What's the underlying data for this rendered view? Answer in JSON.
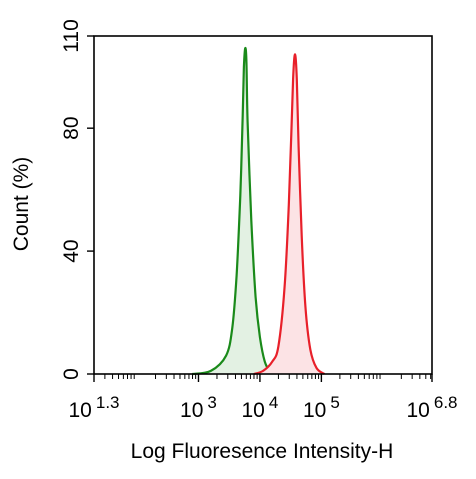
{
  "chart_data": {
    "type": "area",
    "xlabel": "Log Fluoresence Intensity-H",
    "ylabel": "Count  (%)",
    "xscale": "log",
    "xlim": [
      1.3,
      6.8
    ],
    "ylim": [
      0,
      110
    ],
    "x_ticks": [
      {
        "base": "10",
        "exp": "1.3",
        "v": 1.3
      },
      {
        "base": "10",
        "exp": "3",
        "v": 3
      },
      {
        "base": "10",
        "exp": "4",
        "v": 4
      },
      {
        "base": "10",
        "exp": "5",
        "v": 5
      },
      {
        "base": "10",
        "exp": "6.8",
        "v": 6.8
      }
    ],
    "y_ticks": [
      0,
      40,
      80,
      110
    ],
    "grid": false,
    "series": [
      {
        "color": "#1a8a1a",
        "fill": "#e3f1e3",
        "points": [
          [
            2.9,
            0
          ],
          [
            3.2,
            1
          ],
          [
            3.45,
            6
          ],
          [
            3.55,
            15
          ],
          [
            3.62,
            32
          ],
          [
            3.68,
            58
          ],
          [
            3.72,
            84
          ],
          [
            3.74,
            100
          ],
          [
            3.76,
            106
          ],
          [
            3.78,
            102
          ],
          [
            3.8,
            82
          ],
          [
            3.86,
            50
          ],
          [
            3.93,
            25
          ],
          [
            4.0,
            12
          ],
          [
            4.08,
            4
          ],
          [
            4.18,
            0
          ]
        ]
      },
      {
        "color": "#e8202a",
        "fill": "#fce3e5",
        "points": [
          [
            3.9,
            0
          ],
          [
            4.05,
            1
          ],
          [
            4.2,
            4
          ],
          [
            4.3,
            9
          ],
          [
            4.4,
            28
          ],
          [
            4.47,
            55
          ],
          [
            4.51,
            78
          ],
          [
            4.54,
            96
          ],
          [
            4.57,
            104
          ],
          [
            4.6,
            96
          ],
          [
            4.63,
            74
          ],
          [
            4.68,
            45
          ],
          [
            4.74,
            22
          ],
          [
            4.82,
            8
          ],
          [
            4.92,
            2
          ],
          [
            5.05,
            0
          ]
        ]
      }
    ]
  }
}
